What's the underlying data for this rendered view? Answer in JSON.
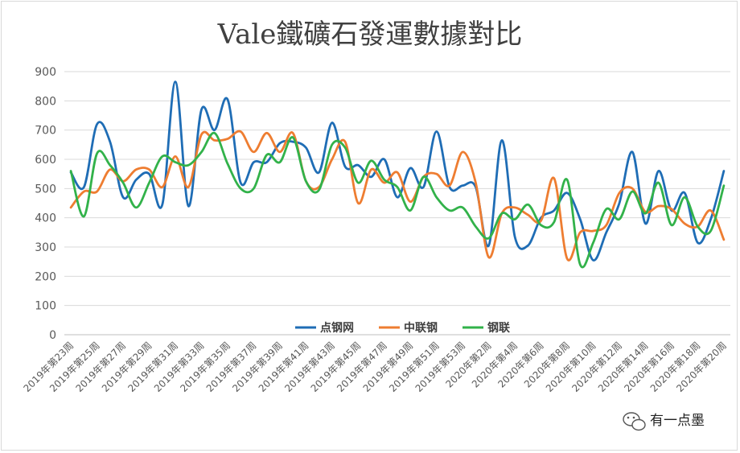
{
  "chart_data": {
    "type": "line",
    "title": "Vale鐵礦石發運數據對比",
    "ylim": [
      0,
      900
    ],
    "yticks": [
      0,
      100,
      200,
      300,
      400,
      500,
      600,
      700,
      800,
      900
    ],
    "categories": [
      "2019年第23周",
      "2019年第24周",
      "2019年第25周",
      "2019年第26周",
      "2019年第27周",
      "2019年第28周",
      "2019年第29周",
      "2019年第30周",
      "2019年第31周",
      "2019年第32周",
      "2019年第33周",
      "2019年第34周",
      "2019年第35周",
      "2019年第36周",
      "2019年第37周",
      "2019年第38周",
      "2019年第39周",
      "2019年第40周",
      "2019年第41周",
      "2019年第42周",
      "2019年第43周",
      "2019年第44周",
      "2019年第45周",
      "2019年第46周",
      "2019年第47周",
      "2019年第48周",
      "2019年第49周",
      "2019年第50周",
      "2019年第51周",
      "2019年第52周",
      "2019年第53周",
      "2020年第1周",
      "2020年第2周",
      "2020年第3周",
      "2020年第4周",
      "2020年第5周",
      "2020年第6周",
      "2020年第7周",
      "2020年第8周",
      "2020年第9周",
      "2020年第10周",
      "2020年第11周",
      "2020年第12周",
      "2020年第13周",
      "2020年第14周",
      "2020年第15周",
      "2020年第16周",
      "2020年第17周",
      "2020年第18周",
      "2020年第19周",
      "2020年第20周"
    ],
    "xtick_labels": [
      "2019年第23周",
      "2019年第25周",
      "2019年第27周",
      "2019年第29周",
      "2019年第31周",
      "2019年第33周",
      "2019年第35周",
      "2019年第37周",
      "2019年第39周",
      "2019年第41周",
      "2019年第43周",
      "2019年第45周",
      "2019年第47周",
      "2019年第49周",
      "2019年第51周",
      "2019年第53周",
      "2020年第2周",
      "2020年第4周",
      "2020年第6周",
      "2020年第8周",
      "2020年第10周",
      "2020年第12周",
      "2020年第14周",
      "2020年第16周",
      "2020年第18周",
      "2020年第20周"
    ],
    "series": [
      {
        "name": "点钢网",
        "color": "#1f6db5",
        "values": [
          555,
          505,
          720,
          660,
          470,
          530,
          550,
          445,
          865,
          440,
          770,
          700,
          805,
          520,
          590,
          590,
          655,
          660,
          640,
          555,
          725,
          575,
          580,
          540,
          600,
          470,
          570,
          505,
          695,
          505,
          510,
          505,
          305,
          665,
          335,
          305,
          400,
          425,
          485,
          395,
          255,
          350,
          450,
          625,
          380,
          560,
          425,
          485,
          315,
          395,
          560
        ]
      },
      {
        "name": "中联钢",
        "color": "#ee7d31",
        "values": [
          435,
          490,
          490,
          565,
          525,
          565,
          565,
          505,
          610,
          505,
          685,
          665,
          670,
          695,
          625,
          690,
          625,
          690,
          525,
          505,
          600,
          660,
          450,
          565,
          520,
          555,
          455,
          540,
          550,
          510,
          625,
          520,
          265,
          415,
          435,
          410,
          390,
          535,
          260,
          350,
          355,
          375,
          485,
          500,
          420,
          440,
          430,
          380,
          370,
          425,
          325
        ]
      },
      {
        "name": "钢联",
        "color": "#32b24a",
        "values": [
          560,
          405,
          620,
          580,
          520,
          435,
          520,
          610,
          590,
          580,
          625,
          690,
          585,
          500,
          500,
          615,
          590,
          675,
          525,
          495,
          650,
          640,
          520,
          595,
          530,
          505,
          425,
          540,
          470,
          425,
          435,
          370,
          330,
          415,
          395,
          445,
          375,
          385,
          530,
          240,
          315,
          430,
          395,
          490,
          415,
          520,
          375,
          470,
          370,
          355,
          510
        ]
      }
    ]
  },
  "watermark": {
    "text": "有一点墨",
    "icon": "wechat-icon"
  }
}
